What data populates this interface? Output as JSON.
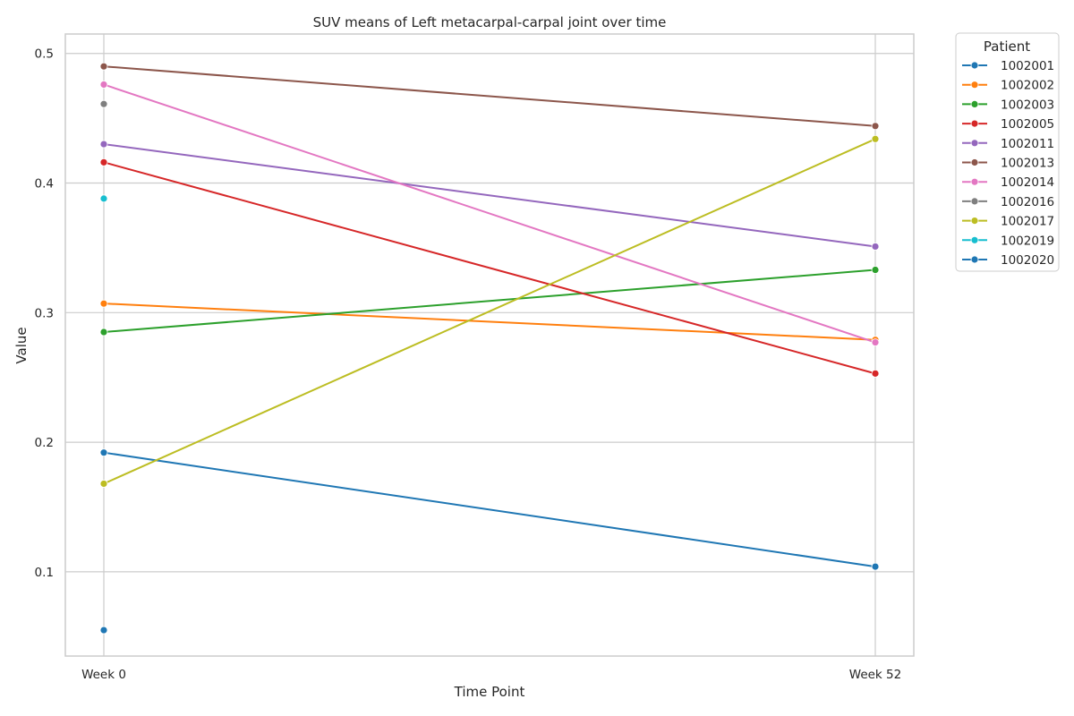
{
  "chart_data": {
    "type": "line",
    "title": "SUV means of Left metacarpal-carpal joint over time",
    "xlabel": "Time Point",
    "ylabel": "Value",
    "categories": [
      "Week 0",
      "Week 52"
    ],
    "ylim": [
      0.035,
      0.515
    ],
    "yticks": [
      "0.1",
      "0.2",
      "0.3",
      "0.4",
      "0.5"
    ],
    "grid": true,
    "legend": {
      "title": "Patient",
      "position": "outside-top-right"
    },
    "series": [
      {
        "name": "1002001",
        "color": "#1f77b4",
        "values": [
          0.192,
          0.104
        ]
      },
      {
        "name": "1002002",
        "color": "#ff7f0e",
        "values": [
          0.307,
          0.279
        ]
      },
      {
        "name": "1002003",
        "color": "#2ca02c",
        "values": [
          0.285,
          0.333
        ]
      },
      {
        "name": "1002005",
        "color": "#d62728",
        "values": [
          0.416,
          0.253
        ]
      },
      {
        "name": "1002011",
        "color": "#9467bd",
        "values": [
          0.43,
          0.351
        ]
      },
      {
        "name": "1002013",
        "color": "#8c564b",
        "values": [
          0.49,
          0.444
        ]
      },
      {
        "name": "1002014",
        "color": "#e377c2",
        "values": [
          0.476,
          0.277
        ]
      },
      {
        "name": "1002016",
        "color": "#7f7f7f",
        "values": [
          0.461,
          null
        ]
      },
      {
        "name": "1002017",
        "color": "#bcbd22",
        "values": [
          0.168,
          0.434
        ]
      },
      {
        "name": "1002019",
        "color": "#17becf",
        "values": [
          0.388,
          null
        ]
      },
      {
        "name": "1002020",
        "color": "#1f77b4",
        "values": [
          0.055,
          null
        ]
      }
    ]
  }
}
